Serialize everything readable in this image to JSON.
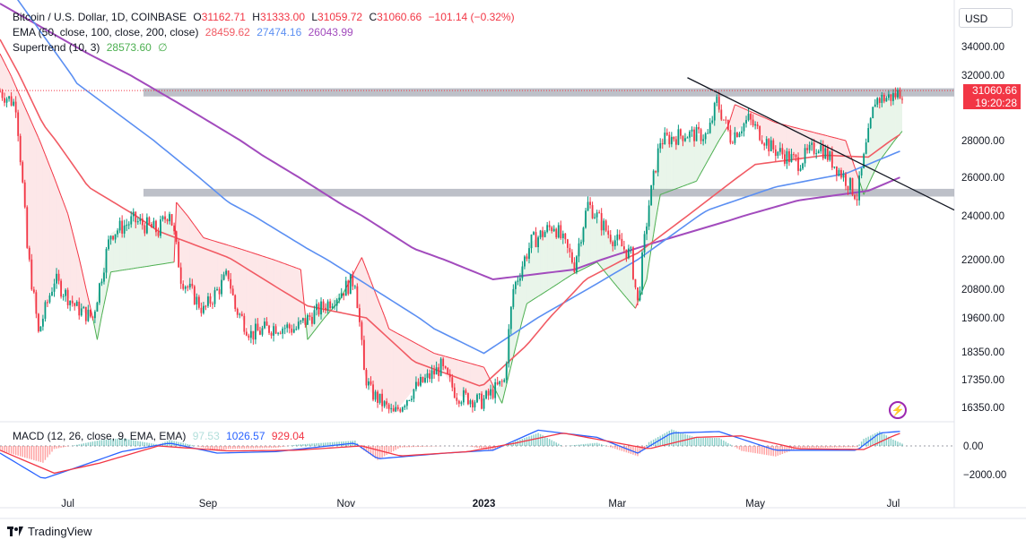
{
  "header": {
    "symbol": "Bitcoin / U.S. Dollar, 1D, COINBASE",
    "open_label": "O",
    "open": "31162.71",
    "high_label": "H",
    "high": "31333.00",
    "low_label": "L",
    "low": "31059.72",
    "close_label": "C",
    "close": "31060.66",
    "change": "−101.14 (−0.32%)"
  },
  "ema_legend": {
    "label": "EMA (50, close, 100, close, 200, close)",
    "ema50": "28459.62",
    "ema100": "27474.16",
    "ema200": "26043.99"
  },
  "supertrend_legend": {
    "label": "Supertrend (10, 3)",
    "value": "28573.60",
    "extra": "∅"
  },
  "macd_legend": {
    "label": "MACD (12, 26, close, 9, EMA, EMA)",
    "hist": "97.53",
    "macd": "1026.57",
    "signal": "929.04"
  },
  "currency": "USD",
  "price_badge": {
    "price": "31060.66",
    "countdown": "19:20:28"
  },
  "branding": "TradingView",
  "colors": {
    "up": "#089981",
    "down": "#f23645",
    "ema50": "#f15b64",
    "ema100": "#5b8ff2",
    "ema200": "#a24bbd",
    "macd": "#2962ff",
    "signal": "#f23645",
    "st_up": "#4caf50",
    "st_down": "#f23645",
    "zone": "#b2b5be"
  },
  "chart_data": [
    {
      "type": "candlestick",
      "title": "Bitcoin / U.S. Dollar, 1D, COINBASE",
      "ylabel": "USD",
      "y_ticks": [
        34000,
        32000,
        28000,
        26000,
        24000,
        22000,
        20800,
        19600,
        18350,
        17350,
        16350
      ],
      "y_tick_labels": [
        "34000.00",
        "32000.00",
        "28000.00",
        "26000.00",
        "24000.00",
        "22000.00",
        "20800.00",
        "19600.00",
        "18350.00",
        "17350.00",
        "16350.00"
      ],
      "x_tick_labels": [
        "Jul",
        "Sep",
        "Nov",
        "2023",
        "Mar",
        "May",
        "Jul"
      ],
      "x_tick_dates": [
        "2022-07-01",
        "2022-09-01",
        "2022-11-01",
        "2023-01-01",
        "2023-03-01",
        "2023-05-01",
        "2023-07-01"
      ],
      "x_range": [
        "2022-06-01",
        "2023-07-28"
      ],
      "close_path": [
        [
          "2022-06-01",
          31000
        ],
        [
          "2022-06-08",
          30200
        ],
        [
          "2022-06-13",
          22500
        ],
        [
          "2022-06-18",
          19000
        ],
        [
          "2022-06-25",
          21200
        ],
        [
          "2022-07-05",
          20000
        ],
        [
          "2022-07-12",
          19600
        ],
        [
          "2022-07-20",
          23200
        ],
        [
          "2022-07-30",
          23800
        ],
        [
          "2022-08-10",
          23300
        ],
        [
          "2022-08-15",
          24300
        ],
        [
          "2022-08-20",
          21300
        ],
        [
          "2022-08-30",
          19900
        ],
        [
          "2022-09-10",
          21400
        ],
        [
          "2022-09-13",
          20000
        ],
        [
          "2022-09-20",
          19000
        ],
        [
          "2022-10-01",
          19300
        ],
        [
          "2022-10-10",
          19200
        ],
        [
          "2022-10-25",
          20300
        ],
        [
          "2022-11-05",
          21200
        ],
        [
          "2022-11-09",
          17600
        ],
        [
          "2022-11-12",
          16900
        ],
        [
          "2022-11-22",
          16100
        ],
        [
          "2022-12-01",
          17000
        ],
        [
          "2022-12-13",
          17800
        ],
        [
          "2022-12-20",
          16800
        ],
        [
          "2022-12-31",
          16550
        ],
        [
          "2023-01-10",
          17300
        ],
        [
          "2023-01-14",
          20800
        ],
        [
          "2023-01-22",
          22800
        ],
        [
          "2023-02-01",
          23600
        ],
        [
          "2023-02-10",
          21800
        ],
        [
          "2023-02-16",
          24600
        ],
        [
          "2023-02-25",
          23200
        ],
        [
          "2023-03-07",
          22200
        ],
        [
          "2023-03-10",
          20200
        ],
        [
          "2023-03-15",
          24600
        ],
        [
          "2023-03-20",
          28000
        ],
        [
          "2023-03-31",
          28400
        ],
        [
          "2023-04-10",
          28300
        ],
        [
          "2023-04-14",
          30400
        ],
        [
          "2023-04-20",
          28200
        ],
        [
          "2023-04-28",
          29300
        ],
        [
          "2023-05-08",
          27600
        ],
        [
          "2023-05-20",
          26800
        ],
        [
          "2023-05-29",
          27800
        ],
        [
          "2023-06-10",
          25900
        ],
        [
          "2023-06-15",
          25000
        ],
        [
          "2023-06-20",
          28300
        ],
        [
          "2023-06-23",
          30500
        ],
        [
          "2023-07-01",
          30700
        ],
        [
          "2023-07-05",
          31060
        ]
      ],
      "ema_50_path": [
        [
          "2022-06-01",
          34500
        ],
        [
          "2022-06-20",
          29000
        ],
        [
          "2022-07-10",
          25500
        ],
        [
          "2022-08-10",
          23300
        ],
        [
          "2022-09-10",
          22100
        ],
        [
          "2022-10-15",
          20100
        ],
        [
          "2022-11-10",
          19600
        ],
        [
          "2022-12-01",
          18000
        ],
        [
          "2022-12-31",
          17100
        ],
        [
          "2023-01-20",
          18600
        ],
        [
          "2023-02-15",
          21200
        ],
        [
          "2023-03-10",
          22300
        ],
        [
          "2023-04-01",
          24000
        ],
        [
          "2023-05-01",
          26700
        ],
        [
          "2023-06-01",
          27200
        ],
        [
          "2023-06-20",
          27100
        ],
        [
          "2023-07-05",
          28460
        ]
      ],
      "ema_100_path": [
        [
          "2022-06-01",
          39000
        ],
        [
          "2022-07-05",
          31500
        ],
        [
          "2022-08-10",
          27800
        ],
        [
          "2022-09-10",
          24700
        ],
        [
          "2022-10-15",
          22500
        ],
        [
          "2022-11-10",
          21000
        ],
        [
          "2022-12-10",
          19200
        ],
        [
          "2023-01-01",
          18300
        ],
        [
          "2023-02-01",
          20000
        ],
        [
          "2023-03-10",
          22000
        ],
        [
          "2023-04-10",
          24300
        ],
        [
          "2023-05-10",
          25500
        ],
        [
          "2023-06-10",
          26200
        ],
        [
          "2023-07-05",
          27474
        ]
      ],
      "ema_200_path": [
        [
          "2022-06-01",
          37000
        ],
        [
          "2022-07-10",
          33500
        ],
        [
          "2022-08-20",
          30200
        ],
        [
          "2022-09-25",
          27200
        ],
        [
          "2022-10-30",
          24600
        ],
        [
          "2022-12-01",
          22500
        ],
        [
          "2023-01-05",
          21200
        ],
        [
          "2023-02-10",
          21600
        ],
        [
          "2023-03-15",
          22700
        ],
        [
          "2023-04-20",
          23800
        ],
        [
          "2023-05-20",
          24800
        ],
        [
          "2023-06-20",
          25300
        ],
        [
          "2023-07-05",
          26044
        ]
      ],
      "supertrend_path": [
        [
          "2022-06-01",
          33500
        ],
        [
          "2022-07-01",
          24100
        ],
        [
          "2022-07-14",
          18800
        ],
        [
          "2022-07-20",
          21500
        ],
        [
          "2022-08-17",
          21900
        ],
        [
          "2022-08-18",
          24700
        ],
        [
          "2022-08-30",
          23000
        ],
        [
          "2022-09-15",
          22500
        ],
        [
          "2022-10-12",
          21600
        ],
        [
          "2022-10-15",
          18800
        ],
        [
          "2022-10-29",
          20300
        ],
        [
          "2022-11-08",
          22100
        ],
        [
          "2022-11-20",
          19200
        ],
        [
          "2022-12-10",
          18300
        ],
        [
          "2023-01-01",
          17800
        ],
        [
          "2023-01-09",
          16500
        ],
        [
          "2023-01-20",
          20200
        ],
        [
          "2023-02-09",
          21400
        ],
        [
          "2023-02-20",
          21900
        ],
        [
          "2023-03-09",
          20000
        ],
        [
          "2023-03-14",
          21200
        ],
        [
          "2023-03-20",
          25100
        ],
        [
          "2023-04-05",
          25800
        ],
        [
          "2023-04-19",
          28900
        ],
        [
          "2023-04-22",
          30200
        ],
        [
          "2023-05-10",
          29100
        ],
        [
          "2023-06-10",
          28000
        ],
        [
          "2023-06-18",
          25100
        ],
        [
          "2023-06-25",
          26900
        ],
        [
          "2023-07-05",
          28574
        ]
      ],
      "horizontal_zones": [
        [
          30700,
          31200
        ],
        [
          25000,
          25400
        ]
      ],
      "trendline": [
        [
          "2023-04-01",
          31850
        ],
        [
          "2023-07-28",
          24300
        ]
      ],
      "last_price": 31060.66
    },
    {
      "type": "line",
      "title": "MACD (12, 26, close, 9, EMA, EMA)",
      "y_ticks": [
        0.0,
        -2000.0
      ],
      "y_tick_labels": [
        "0.00",
        "−2000.00"
      ],
      "series": [
        {
          "name": "MACD",
          "values": [
            [
              "2022-06-01",
              -500
            ],
            [
              "2022-06-20",
              -2300
            ],
            [
              "2022-07-05",
              -1500
            ],
            [
              "2022-07-25",
              -400
            ],
            [
              "2022-08-15",
              200
            ],
            [
              "2022-09-05",
              -500
            ],
            [
              "2022-10-01",
              -400
            ],
            [
              "2022-11-05",
              200
            ],
            [
              "2022-11-15",
              -900
            ],
            [
              "2022-12-15",
              -500
            ],
            [
              "2023-01-05",
              -300
            ],
            [
              "2023-01-25",
              1100
            ],
            [
              "2023-02-20",
              600
            ],
            [
              "2023-03-10",
              -500
            ],
            [
              "2023-03-25",
              900
            ],
            [
              "2023-04-15",
              1000
            ],
            [
              "2023-05-10",
              -300
            ],
            [
              "2023-06-15",
              -300
            ],
            [
              "2023-06-25",
              900
            ],
            [
              "2023-07-05",
              1027
            ]
          ]
        },
        {
          "name": "Signal",
          "values": [
            [
              "2022-06-01",
              -300
            ],
            [
              "2022-06-25",
              -1900
            ],
            [
              "2022-07-15",
              -1200
            ],
            [
              "2022-08-10",
              0
            ],
            [
              "2022-09-10",
              -350
            ],
            [
              "2022-10-10",
              -300
            ],
            [
              "2022-11-08",
              0
            ],
            [
              "2022-11-25",
              -700
            ],
            [
              "2022-12-25",
              -400
            ],
            [
              "2023-01-15",
              200
            ],
            [
              "2023-02-05",
              900
            ],
            [
              "2023-03-15",
              -200
            ],
            [
              "2023-04-05",
              600
            ],
            [
              "2023-04-25",
              700
            ],
            [
              "2023-05-20",
              -200
            ],
            [
              "2023-06-18",
              -250
            ],
            [
              "2023-07-01",
              700
            ],
            [
              "2023-07-05",
              929
            ]
          ]
        }
      ]
    }
  ]
}
